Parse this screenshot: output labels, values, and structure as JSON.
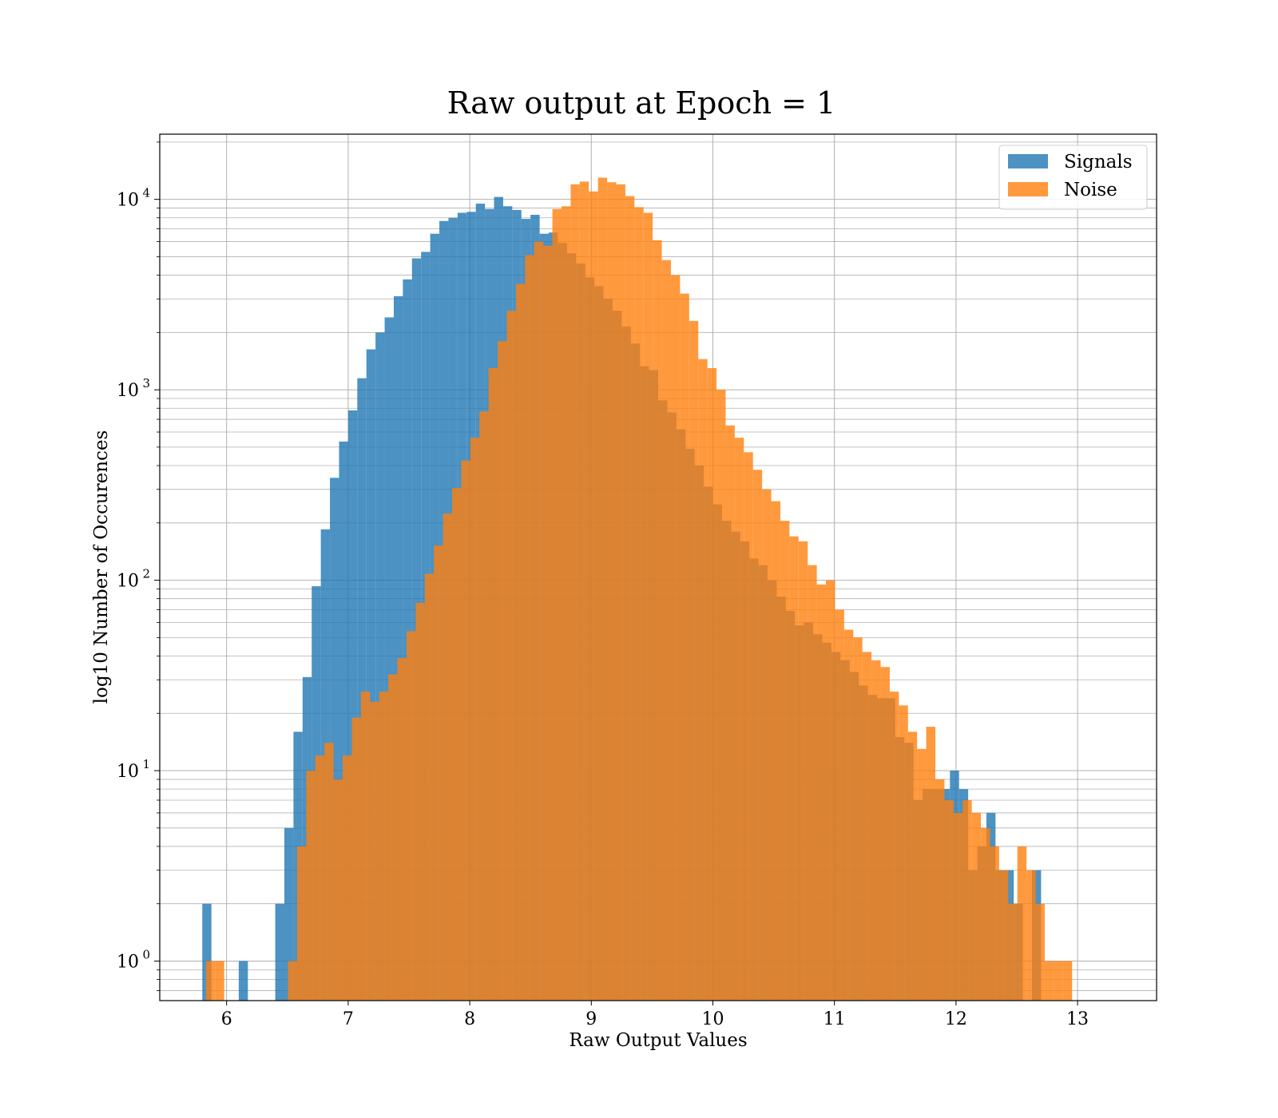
{
  "chart_data": {
    "type": "bar",
    "title": "Raw output at Epoch = 1",
    "xlabel": "Raw Output Values",
    "ylabel": "log10 Number of Occurences",
    "yscale": "log",
    "xlim": [
      5.45,
      13.65
    ],
    "ylim": [
      0.62,
      22000
    ],
    "xticks": [
      6,
      7,
      8,
      9,
      10,
      11,
      12,
      13
    ],
    "yticks": [
      {
        "value": 1,
        "base": "10",
        "exp": "0"
      },
      {
        "value": 10,
        "base": "10",
        "exp": "1"
      },
      {
        "value": 100,
        "base": "10",
        "exp": "2"
      },
      {
        "value": 1000,
        "base": "10",
        "exp": "3"
      },
      {
        "value": 10000,
        "base": "10",
        "exp": "4"
      }
    ],
    "grid": true,
    "legend_position": "top-right",
    "series": [
      {
        "name": "Signals",
        "color": "#1f77b4",
        "bin_start": 5.8,
        "bin_width": 0.075,
        "values": [
          2,
          0,
          0,
          0,
          1,
          0,
          0,
          0,
          2,
          5,
          16,
          31,
          93,
          185,
          345,
          535,
          780,
          1150,
          1630,
          2000,
          2400,
          3100,
          3800,
          4900,
          5300,
          6600,
          7700,
          8000,
          8500,
          8600,
          9500,
          8900,
          10300,
          9200,
          8800,
          7900,
          8300,
          6600,
          6700,
          5900,
          5200,
          4600,
          3900,
          3500,
          3000,
          2600,
          2150,
          1750,
          1330,
          1270,
          880,
          760,
          620,
          490,
          400,
          310,
          250,
          205,
          180,
          160,
          130,
          120,
          100,
          82,
          69,
          58,
          60,
          52,
          47,
          42,
          38,
          33,
          28,
          25,
          24,
          24,
          15,
          14,
          7,
          8,
          8,
          8,
          10,
          8,
          3,
          4,
          6,
          3,
          3,
          2,
          0,
          3,
          0,
          0,
          0
        ],
        "edges_note": ""
      },
      {
        "name": "Noise",
        "color": "#ff7f0e",
        "bin_start": 5.83,
        "bin_width": 0.075,
        "values": [
          1,
          1,
          0,
          0,
          0,
          0,
          0,
          0,
          0,
          1,
          4,
          10,
          12,
          14,
          9,
          12,
          19,
          26,
          23,
          26,
          32,
          39,
          54,
          76,
          108,
          152,
          224,
          305,
          425,
          560,
          770,
          1300,
          1800,
          2600,
          3600,
          5100,
          6000,
          5700,
          8900,
          9200,
          12000,
          12400,
          11000,
          13000,
          12300,
          12000,
          10400,
          9100,
          8500,
          6100,
          4800,
          4000,
          3200,
          2300,
          1450,
          1300,
          1000,
          650,
          560,
          470,
          380,
          300,
          260,
          205,
          170,
          160,
          120,
          95,
          100,
          70,
          55,
          50,
          42,
          38,
          35,
          26,
          22,
          16,
          13,
          17,
          9,
          7,
          6,
          7,
          6,
          5,
          4,
          3,
          2,
          4,
          3,
          2,
          1,
          1,
          1
        ]
      }
    ]
  }
}
